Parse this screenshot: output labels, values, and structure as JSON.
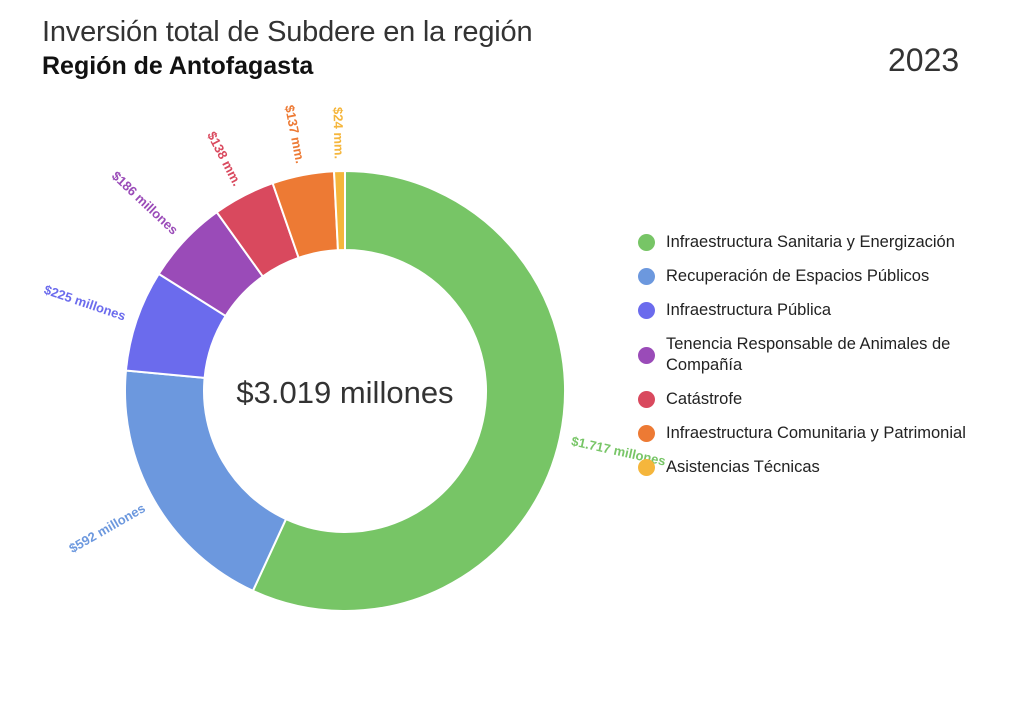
{
  "title": "Inversión total de Subdere en la región",
  "subtitle": "Región de Antofagasta",
  "year": "2023",
  "center_label": "$3.019 millones",
  "chart_data": {
    "type": "pie",
    "variant": "donut",
    "title": "Inversión total de Subdere en la región",
    "subtitle": "Región de Antofagasta",
    "total": 3019,
    "unit": "millones",
    "legend_position": "right",
    "categories": [
      "Infraestructura Sanitaria y Energización",
      "Recuperación de Espacios Públicos",
      "Infraestructura Pública",
      "Tenencia Responsable de Animales de Compañía",
      "Catástrofe",
      "Infraestructura Comunitaria y Patrimonial",
      "Asistencias Técnicas"
    ],
    "values": [
      1717,
      592,
      225,
      186,
      138,
      137,
      24
    ],
    "data_labels": [
      "$1.717 millones",
      "$592 millones",
      "$225 millones",
      "$186 millones",
      "$138 mm.",
      "$137 mm.",
      "$24 mm."
    ],
    "colors": [
      "#77c566",
      "#6c98de",
      "#6b6bed",
      "#9a4bb8",
      "#d9495e",
      "#ed7a34",
      "#f5b63c"
    ]
  }
}
